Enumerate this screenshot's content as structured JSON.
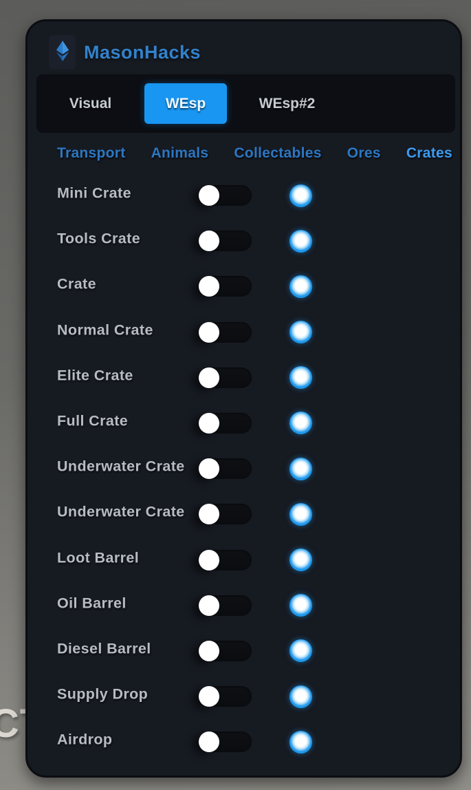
{
  "app": {
    "title": "MasonHacks",
    "logo_icon": "gem-icon"
  },
  "colors": {
    "accent": "#1896f2",
    "panel_bg": "#161a21",
    "subtab": "#2c77c2",
    "subtab_active": "#3d9bf0",
    "swatch": "#1e98ec"
  },
  "background_text": "CT",
  "tabs": [
    {
      "label": "Visual",
      "active": false
    },
    {
      "label": "WEsp",
      "active": true
    },
    {
      "label": "WEsp#2",
      "active": false
    }
  ],
  "subtabs": [
    {
      "label": "Transport",
      "active": false
    },
    {
      "label": "Animals",
      "active": false
    },
    {
      "label": "Collectables",
      "active": false
    },
    {
      "label": "Ores",
      "active": false
    },
    {
      "label": "Crates",
      "active": true
    }
  ],
  "rows": [
    {
      "label": "Mini Crate",
      "toggle": "off",
      "color": "#1e98ec"
    },
    {
      "label": "Tools Crate",
      "toggle": "off",
      "color": "#1e98ec"
    },
    {
      "label": "Crate",
      "toggle": "off",
      "color": "#1e98ec"
    },
    {
      "label": "Normal Crate",
      "toggle": "off",
      "color": "#1e98ec"
    },
    {
      "label": "Elite Crate",
      "toggle": "off",
      "color": "#1e98ec"
    },
    {
      "label": "Full Crate",
      "toggle": "off",
      "color": "#1e98ec"
    },
    {
      "label": "Underwater Crate",
      "toggle": "off",
      "color": "#1e98ec"
    },
    {
      "label": "Underwater Crate",
      "toggle": "off",
      "color": "#1e98ec"
    },
    {
      "label": "Loot Barrel",
      "toggle": "off",
      "color": "#1e98ec"
    },
    {
      "label": "Oil Barrel",
      "toggle": "off",
      "color": "#1e98ec"
    },
    {
      "label": "Diesel Barrel",
      "toggle": "off",
      "color": "#1e98ec"
    },
    {
      "label": "Supply Drop",
      "toggle": "off",
      "color": "#1e98ec"
    },
    {
      "label": "Airdrop",
      "toggle": "off",
      "color": "#1e98ec"
    }
  ]
}
